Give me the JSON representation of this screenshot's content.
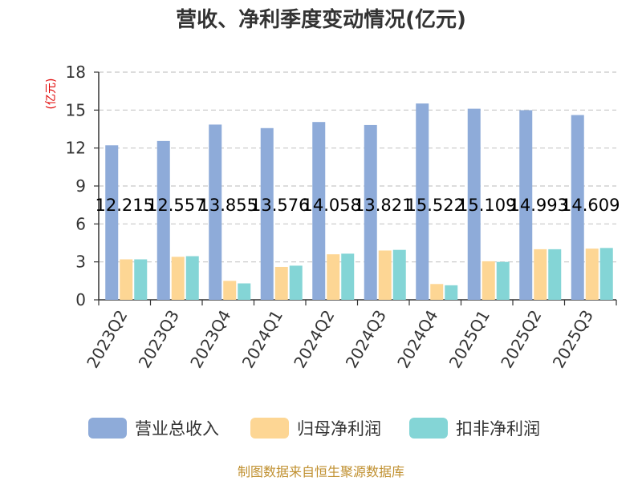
{
  "chart_data": {
    "type": "bar",
    "title": "营收、净利季度变动情况(亿元)",
    "unit_label": "(亿元)",
    "ylim": [
      0,
      18
    ],
    "yticks": [
      0,
      3,
      6,
      9,
      12,
      15,
      18
    ],
    "grid": true,
    "legend_position": "bottom",
    "categories": [
      "2023Q2",
      "2023Q3",
      "2023Q4",
      "2024Q1",
      "2024Q2",
      "2024Q3",
      "2024Q4",
      "2025Q1",
      "2025Q2",
      "2025Q3"
    ],
    "series": [
      {
        "name": "营业总收入",
        "color": "#8eabd9",
        "values": [
          12.215,
          12.557,
          13.855,
          13.576,
          14.058,
          13.821,
          15.522,
          15.109,
          14.993,
          14.609
        ],
        "data_labels": [
          "12.215",
          "12.557",
          "13.855",
          "13.576",
          "14.058",
          "13.821",
          "15.522",
          "15.109",
          "14.993",
          "14.609"
        ]
      },
      {
        "name": "归母净利润",
        "color": "#fdd694",
        "values": [
          3.2,
          3.4,
          1.5,
          2.6,
          3.6,
          3.9,
          1.25,
          3.05,
          4.0,
          4.05
        ]
      },
      {
        "name": "扣非净利润",
        "color": "#84d5d6",
        "values": [
          3.2,
          3.45,
          1.3,
          2.7,
          3.65,
          3.95,
          1.15,
          3.0,
          4.0,
          4.1
        ]
      }
    ],
    "source": "制图数据来自恒生聚源数据库"
  }
}
